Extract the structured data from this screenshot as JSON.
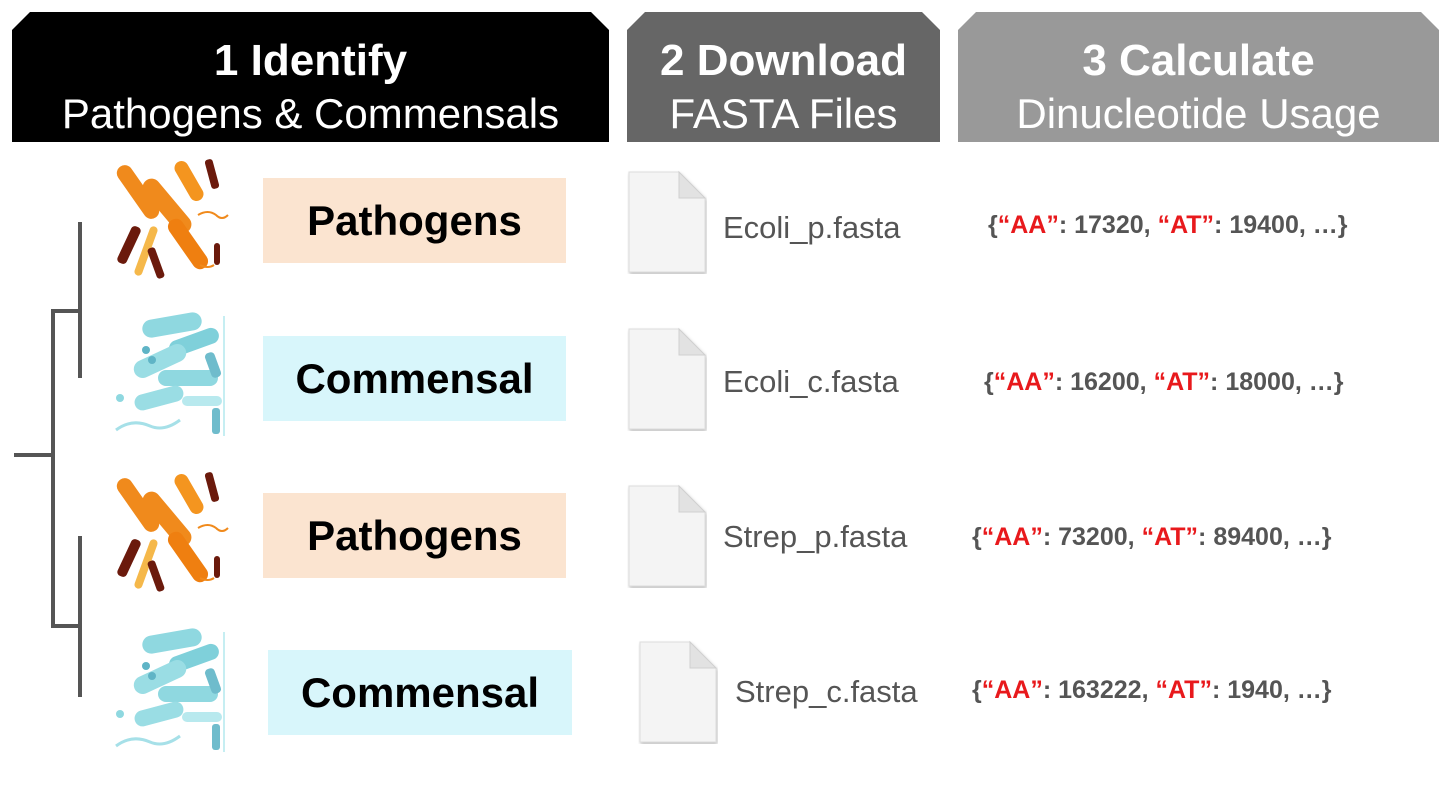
{
  "steps": [
    {
      "title": "1 Identify",
      "subtitle": "Pathogens & Commensals",
      "color": "#000000"
    },
    {
      "title": "2 Download",
      "subtitle": "FASTA Files",
      "color": "#666666"
    },
    {
      "title": "3 Calculate",
      "subtitle": "Dinucleotide Usage",
      "color": "#999999"
    }
  ],
  "rows": [
    {
      "label": "Pathogens",
      "kind": "pathogen",
      "file": "Ecoli_p.fasta",
      "key1": "“AA”",
      "val1": "17320",
      "key2": "“AT”",
      "val2": "19400"
    },
    {
      "label": "Commensal",
      "kind": "commensal",
      "file": "Ecoli_c.fasta",
      "key1": "“AA”",
      "val1": "16200",
      "key2": "“AT”",
      "val2": "18000"
    },
    {
      "label": "Pathogens",
      "kind": "pathogen",
      "file": "Strep_p.fasta",
      "key1": "“AA”",
      "val1": "73200",
      "key2": "“AT”",
      "val2": "89400"
    },
    {
      "label": "Commensal",
      "kind": "commensal",
      "file": "Strep_c.fasta",
      "key1": "“AA”",
      "val1": "163222",
      "key2": "“AT”",
      "val2": "1940"
    }
  ],
  "usage_prefix": "{",
  "usage_sep": ": ",
  "usage_comma": ", ",
  "usage_suffix": ", …}",
  "colors": {
    "pathogen_bg": "#fbe4d0",
    "commensal_bg": "#d8f6fb",
    "key_red": "#e8191c",
    "tree": "#555555"
  },
  "icons": {
    "pathogen": "orange-bacteria-icon",
    "commensal": "blue-bacteria-icon",
    "file": "document-icon"
  }
}
